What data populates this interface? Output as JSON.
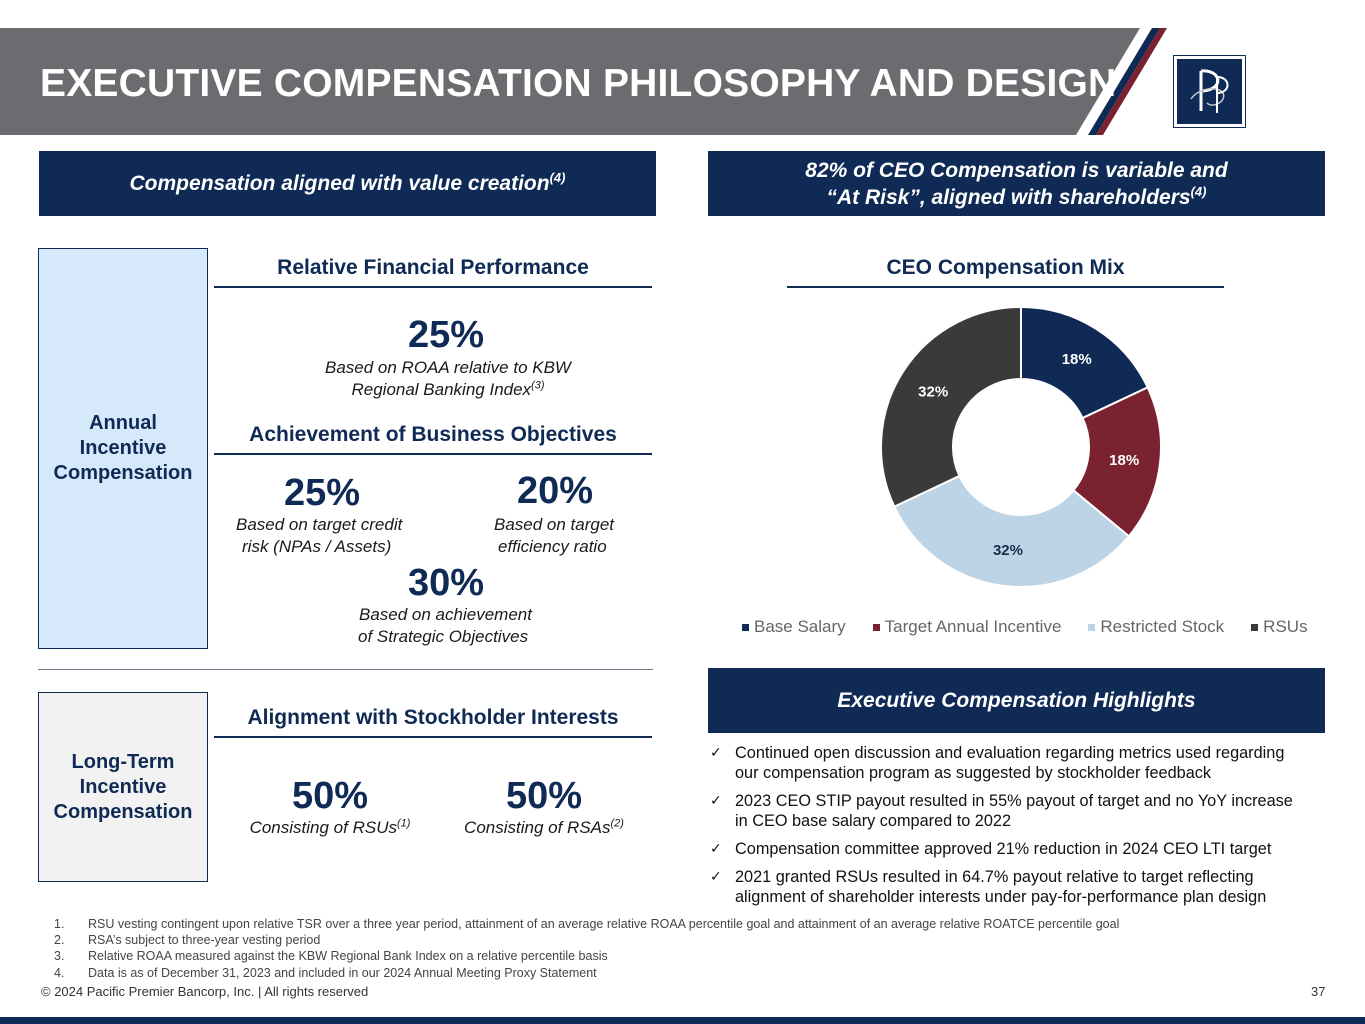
{
  "header": {
    "title": "EXECUTIVE COMPENSATION PHILOSOPHY AND DESIGN",
    "logo_icon": "pacific-premier-logo-icon"
  },
  "left_banner": {
    "text": "Compensation aligned with value creation",
    "sup": "(4)"
  },
  "right_banner": {
    "line1": "82% of CEO Compensation is variable and",
    "line2": "“At Risk”, aligned with shareholders",
    "sup": "(4)"
  },
  "annual": {
    "label_lines": [
      "Annual",
      "Incentive",
      "Compensation"
    ],
    "relative_heading": "Relative Financial Performance",
    "roaa": {
      "pct": "25%",
      "line1": "Based on ROAA relative to KBW",
      "line2": "Regional Banking Index",
      "sup": "(3)"
    },
    "objectives_heading": "Achievement of Business Objectives",
    "credit": {
      "pct": "25%",
      "line1": "Based on target credit",
      "line2": "risk (NPAs / Assets)"
    },
    "efficiency": {
      "pct": "20%",
      "line1": "Based on target",
      "line2": "efficiency ratio"
    },
    "strategic": {
      "pct": "30%",
      "line1": "Based on achievement",
      "line2": "of Strategic Objectives"
    }
  },
  "longterm": {
    "label_lines": [
      "Long-Term",
      "Incentive",
      "Compensation"
    ],
    "heading": "Alignment with Stockholder Interests",
    "rsu": {
      "pct": "50%",
      "desc": "Consisting of RSUs",
      "sup": "(1)"
    },
    "rsa": {
      "pct": "50%",
      "desc": "Consisting of RSAs",
      "sup": "(2)"
    }
  },
  "chart_data": {
    "type": "pie",
    "title": "CEO Compensation Mix",
    "categories": [
      "Base Salary",
      "Target Annual Incentive",
      "Restricted Stock",
      "RSUs"
    ],
    "values": [
      18,
      18,
      32,
      32
    ],
    "labels": [
      "18%",
      "18%",
      "32%",
      "32%"
    ],
    "colors": [
      "#0f2a55",
      "#7b2230",
      "#bcd4e6",
      "#3a3a3a"
    ],
    "label_colors": [
      "#ffffff",
      "#ffffff",
      "#1c2b4a",
      "#ffffff"
    ],
    "donut": true,
    "legend_position": "bottom"
  },
  "highlights": {
    "heading": "Executive Compensation Highlights",
    "check_icon": "checkmark-icon",
    "items": [
      {
        "line1": "Continued open discussion and evaluation regarding metrics used regarding",
        "line2": "our compensation program as suggested by stockholder feedback"
      },
      {
        "line1": "2023 CEO STIP payout resulted in 55% payout of target and no YoY increase",
        "line2": "in CEO base salary compared to 2022"
      },
      {
        "line1": "Compensation committee approved 21% reduction in 2024 CEO LTI target",
        "line2": ""
      },
      {
        "line1": "2021 granted RSUs resulted in 64.7% payout relative to target reflecting",
        "line2": "alignment of shareholder interests under pay-for-performance plan design"
      }
    ]
  },
  "footnotes": [
    {
      "num": "1.",
      "text": "RSU vesting contingent upon relative TSR over a three year period, attainment of an average relative ROAA percentile goal and attainment of an average relative ROATCE percentile goal"
    },
    {
      "num": "2.",
      "text": "RSA’s subject to three-year vesting period"
    },
    {
      "num": "3.",
      "text": "Relative ROAA measured against the KBW Regional Bank Index on a relative percentile basis"
    },
    {
      "num": "4.",
      "text": "Data is as of December 31, 2023 and included in our 2024 Annual Meeting Proxy Statement"
    }
  ],
  "footer": {
    "copyright": "© 2024 Pacific Premier Bancorp, Inc. | All rights reserved",
    "page": "37"
  }
}
